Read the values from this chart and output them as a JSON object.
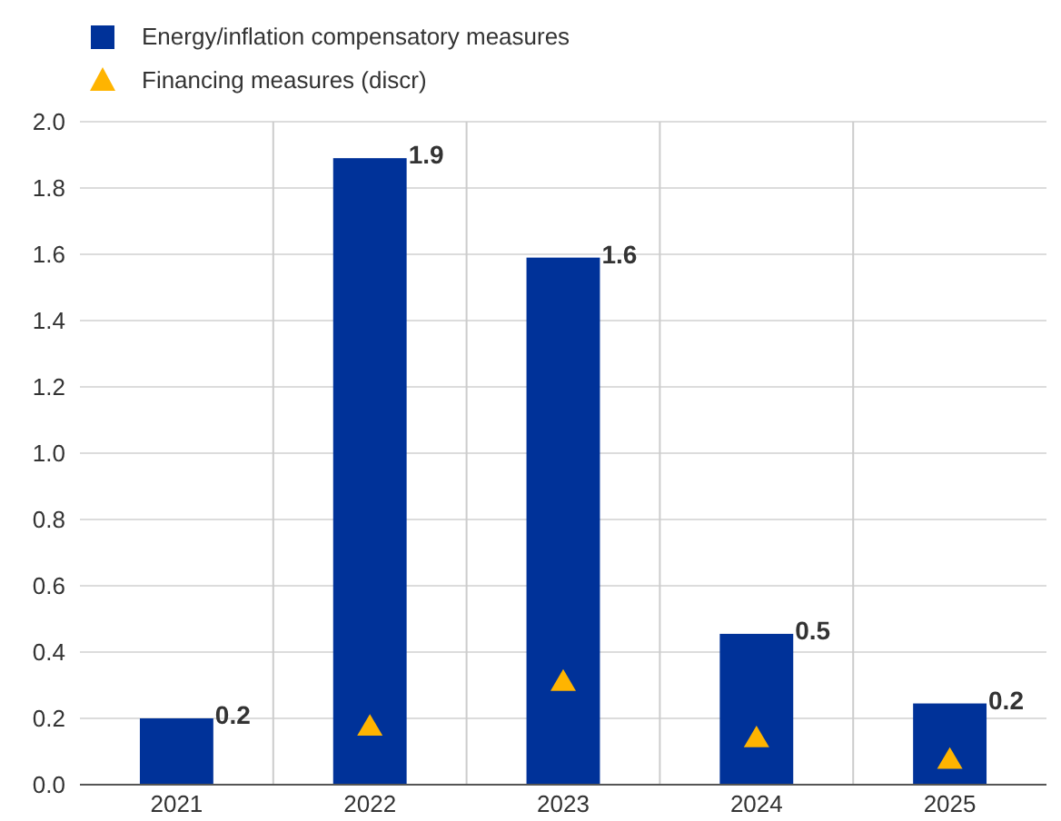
{
  "chart_data": {
    "type": "bar",
    "categories": [
      "2021",
      "2022",
      "2023",
      "2024",
      "2025"
    ],
    "series": [
      {
        "name": "Energy/inflation compensatory measures",
        "color": "#003299",
        "values": [
          0.2,
          1.89,
          1.59,
          0.455,
          0.245
        ],
        "value_labels": [
          "0.2",
          "1.9",
          "1.6",
          "0.5",
          "0.2"
        ]
      },
      {
        "name": "Financing measures (discr)",
        "type": "scatter",
        "color": "#ffb400",
        "values": [
          null,
          0.175,
          0.31,
          0.14,
          0.075
        ]
      }
    ],
    "ylim": [
      0,
      2
    ],
    "yticks": [
      {
        "value": 0,
        "label": "0.0"
      },
      0.2,
      0.4,
      0.6,
      0.8,
      {
        "value": 1,
        "label": "1.0"
      },
      1.2,
      1.4,
      1.6,
      1.8,
      {
        "value": 2,
        "label": "2.0"
      }
    ],
    "grid": true,
    "legend": "top left",
    "marker": "triangle"
  }
}
